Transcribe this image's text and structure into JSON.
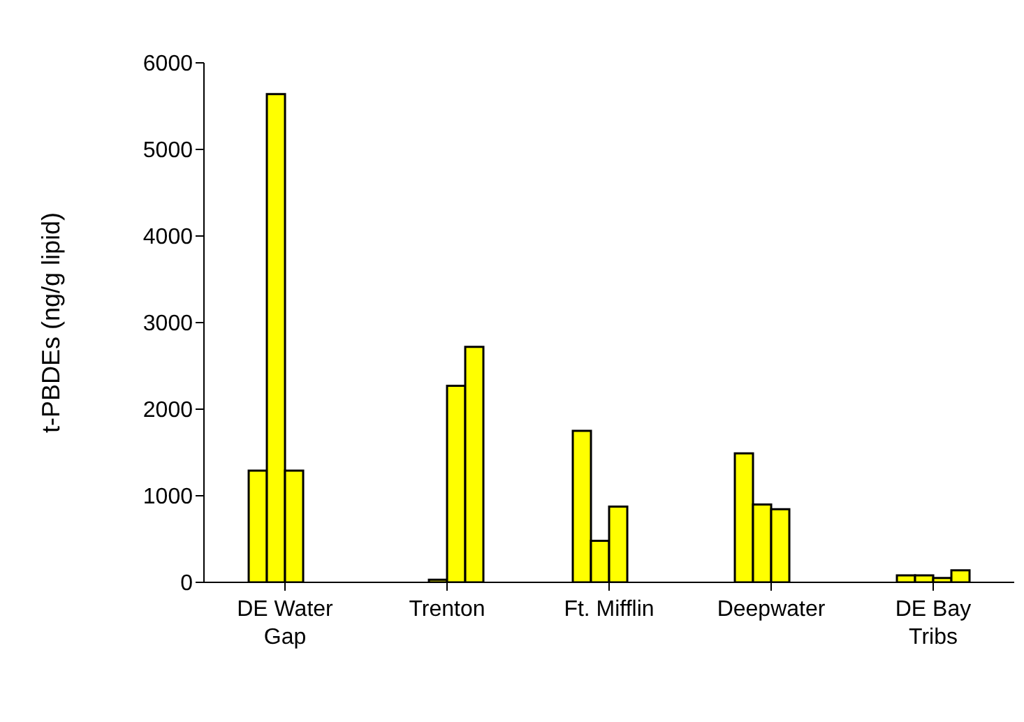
{
  "chart_data": {
    "type": "bar",
    "ylabel": "t-PBDEs (ng/g lipid)",
    "categories": [
      "DE Water Gap",
      "Trenton",
      "Ft. Mifflin",
      "Deepwater",
      "DE Bay Tribs"
    ],
    "series": [
      {
        "color": "#ffff00",
        "values": [
          1290,
          null,
          1750,
          1490,
          80
        ]
      },
      {
        "color": "#ffff00",
        "values": [
          5640,
          30,
          480,
          900,
          80
        ]
      },
      {
        "color": "#ffff00",
        "values": [
          1290,
          2270,
          875,
          845,
          50
        ]
      },
      {
        "color": "#ffff00",
        "values": [
          null,
          2720,
          null,
          null,
          140
        ]
      }
    ],
    "ylim": [
      0,
      6000
    ],
    "yticks": [
      0,
      1000,
      2000,
      3000,
      4000,
      5000,
      6000
    ],
    "grid": false,
    "legend": false
  }
}
